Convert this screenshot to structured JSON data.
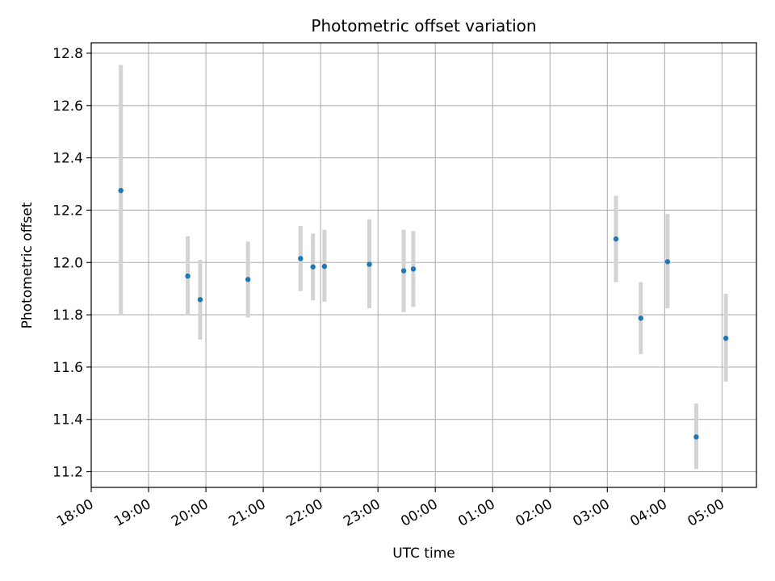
{
  "chart_data": {
    "type": "scatter",
    "title": "Photometric offset variation",
    "xlabel": "UTC time",
    "ylabel": "Photometric offset",
    "x_ticks": [
      "18:00",
      "19:00",
      "20:00",
      "21:00",
      "22:00",
      "23:00",
      "00:00",
      "01:00",
      "02:00",
      "03:00",
      "04:00",
      "05:00"
    ],
    "y_ticks": [
      "11.2",
      "11.4",
      "11.6",
      "11.8",
      "12.0",
      "12.2",
      "12.4",
      "12.6",
      "12.8"
    ],
    "xlim": [
      "18:00",
      "05:36"
    ],
    "ylim": [
      11.14,
      12.84
    ],
    "grid": true,
    "legend": "none",
    "colors": {
      "point": "#1f77b4",
      "errorbar": "#d3d3d3",
      "grid": "#b0b0b0"
    },
    "points": [
      {
        "x": "18:31",
        "y": 12.275,
        "ylow": 11.8,
        "yhigh": 12.755
      },
      {
        "x": "19:41",
        "y": 11.948,
        "ylow": 11.8,
        "yhigh": 12.1
      },
      {
        "x": "19:54",
        "y": 11.858,
        "ylow": 11.705,
        "yhigh": 12.01
      },
      {
        "x": "20:44",
        "y": 11.935,
        "ylow": 11.79,
        "yhigh": 12.08
      },
      {
        "x": "21:39",
        "y": 12.015,
        "ylow": 11.89,
        "yhigh": 12.14
      },
      {
        "x": "21:52",
        "y": 11.983,
        "ylow": 11.855,
        "yhigh": 12.11
      },
      {
        "x": "22:04",
        "y": 11.985,
        "ylow": 11.85,
        "yhigh": 12.125
      },
      {
        "x": "22:51",
        "y": 11.993,
        "ylow": 11.825,
        "yhigh": 12.165
      },
      {
        "x": "23:27",
        "y": 11.968,
        "ylow": 11.81,
        "yhigh": 12.125
      },
      {
        "x": "23:37",
        "y": 11.975,
        "ylow": 11.83,
        "yhigh": 12.12
      },
      {
        "x": "03:09",
        "y": 12.09,
        "ylow": 11.925,
        "yhigh": 12.255
      },
      {
        "x": "03:35",
        "y": 11.787,
        "ylow": 11.65,
        "yhigh": 11.925
      },
      {
        "x": "04:03",
        "y": 12.003,
        "ylow": 11.825,
        "yhigh": 12.185
      },
      {
        "x": "04:33",
        "y": 11.333,
        "ylow": 11.21,
        "yhigh": 11.46
      },
      {
        "x": "05:04",
        "y": 11.71,
        "ylow": 11.545,
        "yhigh": 11.88
      }
    ]
  }
}
